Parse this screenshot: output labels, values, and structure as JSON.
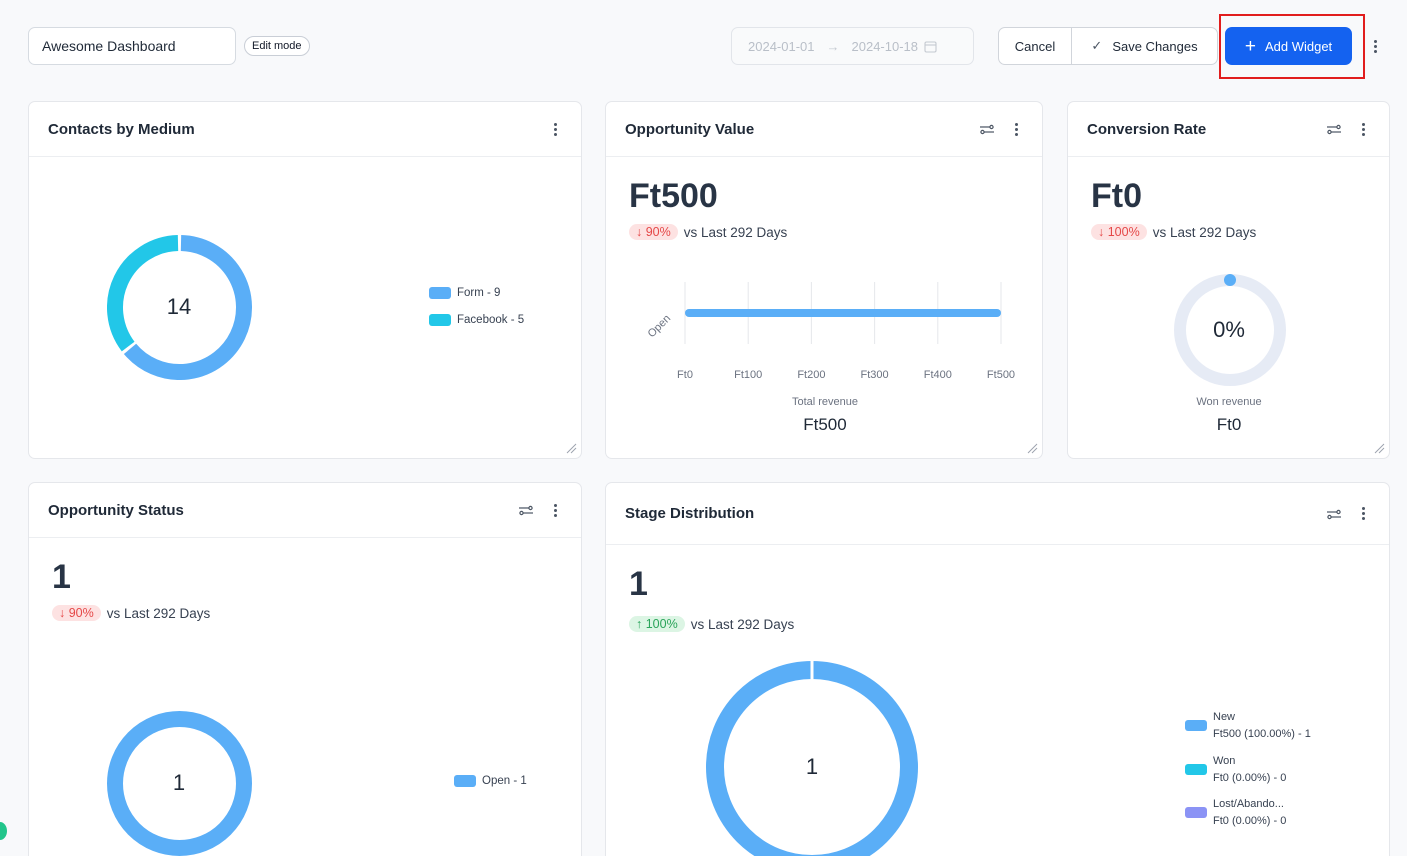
{
  "topbar": {
    "dashboard_name": "Awesome Dashboard",
    "mode_badge": "Edit mode",
    "date_start": "2024-01-01",
    "date_end": "2024-10-18",
    "cancel_label": "Cancel",
    "save_label": "Save Changes",
    "add_label": "Add Widget"
  },
  "widgets": {
    "contacts": {
      "title": "Contacts by Medium",
      "center_value": "14",
      "legend": [
        {
          "label": "Form - 9",
          "color": "#5aaef7"
        },
        {
          "label": "Facebook - 5",
          "color": "#22c7e8"
        }
      ]
    },
    "opp_value": {
      "title": "Opportunity Value",
      "big": "Ft500",
      "change": "↓ 90%",
      "compare": "vs Last 292 Days",
      "y_category": "Open",
      "ticks": [
        "Ft0",
        "Ft100",
        "Ft200",
        "Ft300",
        "Ft400",
        "Ft500"
      ],
      "caption": "Total revenue",
      "total": "Ft500"
    },
    "conversion": {
      "title": "Conversion Rate",
      "big": "Ft0",
      "change": "↓ 100%",
      "compare": "vs Last 292 Days",
      "gauge_value": "0%",
      "caption": "Won revenue",
      "total": "Ft0"
    },
    "opp_status": {
      "title": "Opportunity Status",
      "big": "1",
      "change": "↓ 90%",
      "compare": "vs Last 292 Days",
      "center_value": "1",
      "legend": [
        {
          "label": "Open - 1",
          "color": "#5aaef7"
        }
      ]
    },
    "stage": {
      "title": "Stage Distribution",
      "big": "1",
      "change": "↑ 100%",
      "compare": "vs Last 292 Days",
      "center_value": "1",
      "legend": [
        {
          "name": "New",
          "detail": "Ft500 (100.00%) - 1",
          "color": "#5aaef7"
        },
        {
          "name": "Won",
          "detail": "Ft0 (0.00%) - 0",
          "color": "#22c7e8"
        },
        {
          "name": "Lost/Abando...",
          "detail": "Ft0 (0.00%) - 0",
          "color": "#8b93f5"
        }
      ]
    }
  },
  "chart_data": [
    {
      "type": "pie",
      "title": "Contacts by Medium",
      "categories": [
        "Form",
        "Facebook"
      ],
      "values": [
        9,
        5
      ]
    },
    {
      "type": "bar",
      "title": "Opportunity Value",
      "categories": [
        "Open"
      ],
      "values": [
        500
      ],
      "xlabel": "Total revenue",
      "xlim": [
        0,
        500
      ],
      "x_ticks": [
        "Ft0",
        "Ft100",
        "Ft200",
        "Ft300",
        "Ft400",
        "Ft500"
      ],
      "orientation": "horizontal"
    },
    {
      "type": "pie",
      "title": "Opportunity Status",
      "categories": [
        "Open"
      ],
      "values": [
        1
      ]
    },
    {
      "type": "pie",
      "title": "Stage Distribution",
      "categories": [
        "New",
        "Won",
        "Lost/Abando..."
      ],
      "values": [
        1,
        0,
        0
      ]
    }
  ]
}
